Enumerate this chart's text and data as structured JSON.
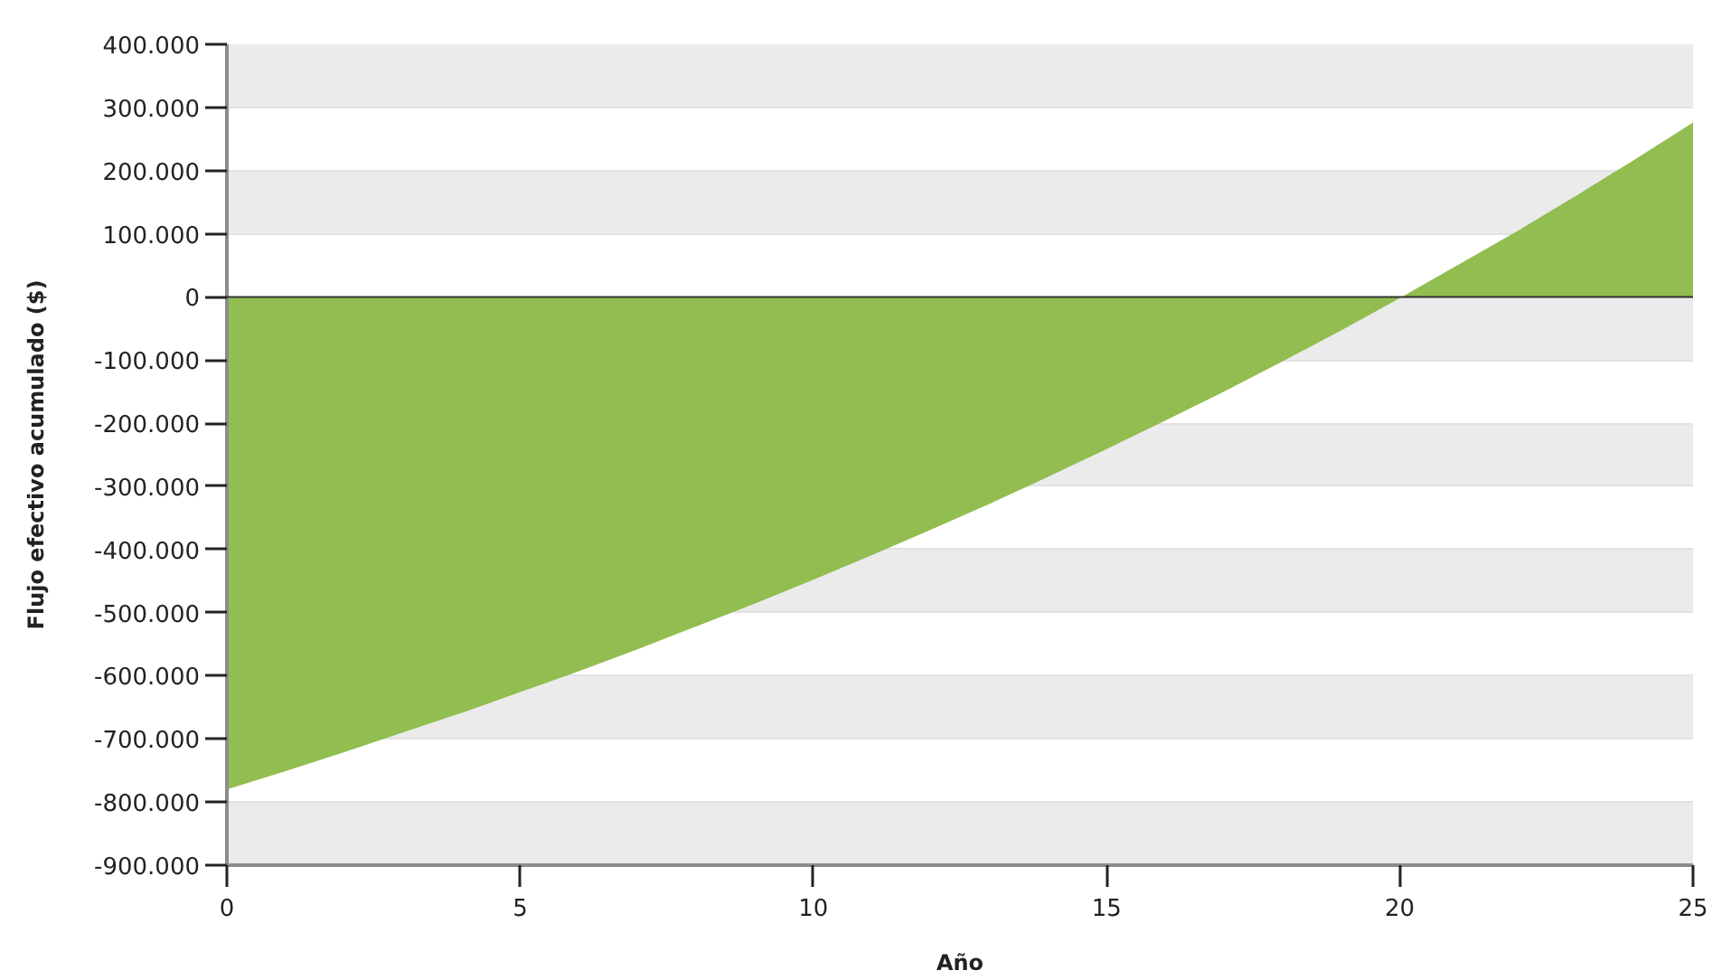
{
  "chart_data": {
    "type": "area",
    "xlabel": "Año",
    "ylabel": "Flujo efectivo acumulado ($)",
    "x": [
      0,
      1,
      2,
      3,
      4,
      5,
      6,
      7,
      8,
      9,
      10,
      11,
      12,
      13,
      14,
      15,
      16,
      17,
      18,
      19,
      20,
      21,
      22,
      23,
      24,
      25
    ],
    "series": [
      {
        "color": "#92bd50",
        "values": [
          -780000,
          -751000,
          -721000,
          -690000,
          -659000,
          -626000,
          -593000,
          -558000,
          -522000,
          -486000,
          -448000,
          -409000,
          -369000,
          -328000,
          -285000,
          -241000,
          -196000,
          -150000,
          -102000,
          -53000,
          -2000,
          51000,
          104000,
          160000,
          217000,
          276000
        ]
      }
    ],
    "xlim": [
      0,
      25
    ],
    "xticks": [
      0,
      5,
      10,
      15,
      20,
      25
    ],
    "ylim": [
      -900000,
      400000
    ],
    "yticks": [
      {
        "value": -900000,
        "label": "-900.000"
      },
      {
        "value": -800000,
        "label": "-800.000"
      },
      {
        "value": -700000,
        "label": "-700.000"
      },
      {
        "value": -600000,
        "label": "-600.000"
      },
      {
        "value": -500000,
        "label": "-500.000"
      },
      {
        "value": -400000,
        "label": "-400.000"
      },
      {
        "value": -300000,
        "label": "-300.000"
      },
      {
        "value": -200000,
        "label": "-200.000"
      },
      {
        "value": -100000,
        "label": "-100.000"
      },
      0,
      {
        "value": 100000,
        "label": "100.000"
      },
      {
        "value": 200000,
        "label": "200.000"
      },
      {
        "value": 300000,
        "label": "300.000"
      },
      {
        "value": 400000,
        "label": "400.000"
      }
    ],
    "ref_lines": [
      {
        "axis": "y",
        "value": 0,
        "color": "#333333"
      }
    ],
    "grid": "y"
  }
}
